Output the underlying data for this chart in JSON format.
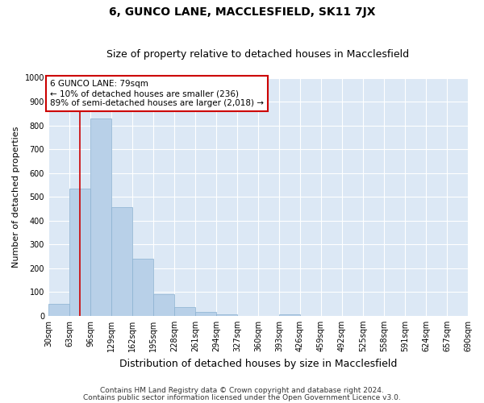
{
  "title": "6, GUNCO LANE, MACCLESFIELD, SK11 7JX",
  "subtitle": "Size of property relative to detached houses in Macclesfield",
  "xlabel": "Distribution of detached houses by size in Macclesfield",
  "ylabel": "Number of detached properties",
  "bin_edges": [
    30,
    63,
    96,
    129,
    162,
    195,
    228,
    261,
    294,
    327,
    360,
    393,
    426,
    459,
    492,
    525,
    558,
    591,
    624,
    657,
    690
  ],
  "bar_heights": [
    50,
    535,
    830,
    455,
    240,
    90,
    35,
    15,
    5,
    0,
    0,
    5,
    0,
    0,
    0,
    0,
    0,
    0,
    0,
    0
  ],
  "bar_color": "#b8d0e8",
  "bar_edge_color": "#8ab0d0",
  "property_size": 79,
  "property_line_color": "#cc0000",
  "annotation_text": "6 GUNCO LANE: 79sqm\n← 10% of detached houses are smaller (236)\n89% of semi-detached houses are larger (2,018) →",
  "annotation_box_color": "#ffffff",
  "annotation_box_edge_color": "#cc0000",
  "footnote1": "Contains HM Land Registry data © Crown copyright and database right 2024.",
  "footnote2": "Contains public sector information licensed under the Open Government Licence v3.0.",
  "ylim": [
    0,
    1000
  ],
  "yticks": [
    0,
    100,
    200,
    300,
    400,
    500,
    600,
    700,
    800,
    900,
    1000
  ],
  "bg_color": "#dce8f5",
  "fig_color": "#ffffff",
  "title_fontsize": 10,
  "subtitle_fontsize": 9,
  "xlabel_fontsize": 9,
  "ylabel_fontsize": 8,
  "tick_fontsize": 7,
  "annotation_fontsize": 7.5,
  "footnote_fontsize": 6.5
}
